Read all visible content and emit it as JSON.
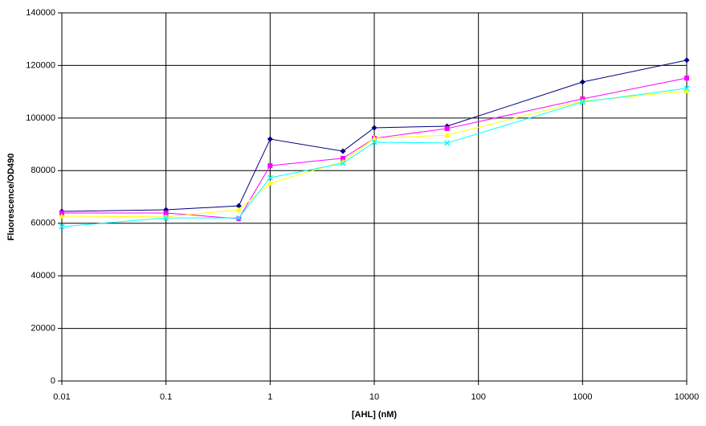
{
  "chart_data": {
    "type": "line",
    "x_label": "[AHL] (nM)",
    "y_label": "Fluorescence/OD490",
    "x": [
      0.01,
      0.1,
      0.5,
      1,
      5,
      10,
      50,
      1000,
      10000
    ],
    "series": [
      {
        "color": "#000080",
        "marker": "diamond",
        "values": [
          64500,
          65100,
          66600,
          92000,
          87400,
          96300,
          96900,
          113700,
          122000
        ]
      },
      {
        "color": "#ff00ff",
        "marker": "square",
        "values": [
          63900,
          63900,
          61700,
          81900,
          84700,
          92300,
          96000,
          107300,
          115200
        ]
      },
      {
        "color": "#ffff00",
        "marker": "triangle",
        "values": [
          62700,
          62400,
          65100,
          75200,
          83400,
          92300,
          93500,
          106400,
          110300
        ]
      },
      {
        "color": "#00ffff",
        "marker": "x",
        "values": [
          58700,
          62000,
          62000,
          77300,
          82800,
          90800,
          90500,
          106100,
          111300
        ]
      }
    ],
    "xlog": true,
    "xlim": [
      0.01,
      10000
    ],
    "xticks": [
      0.01,
      0.1,
      1,
      10,
      100,
      1000,
      10000
    ],
    "ylim": [
      0,
      140000
    ],
    "yticks": [
      0,
      20000,
      40000,
      60000,
      80000,
      100000,
      120000,
      140000
    ],
    "grid": true
  }
}
